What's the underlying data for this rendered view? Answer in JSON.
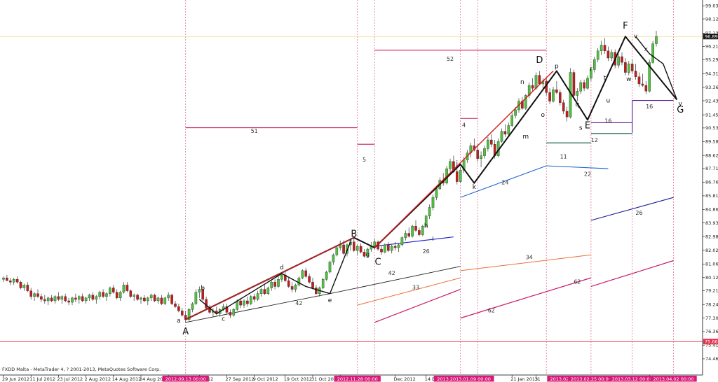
{
  "caption": "FXDD Malta - MetaTrader 4, ? 2001-2013, MetaQuotes Software Corp.",
  "chart_data": {
    "type": "candlestick",
    "ylim": [
      74.7,
      99.2
    ],
    "y_ticks": [
      "99.035",
      "98.125",
      "97.135",
      "96.210",
      "95.290",
      "94.310",
      "93.360",
      "92.430",
      "91.450",
      "90.535",
      "89.585",
      "88.625",
      "87.710",
      "86.760",
      "85.810",
      "84.860",
      "83.930",
      "82.980",
      "82.025",
      "81.065",
      "80.120",
      "79.210",
      "78.245",
      "77.300",
      "76.360",
      "75.410",
      "74.460"
    ],
    "current_price": {
      "label": "96.899",
      "value": 96.9
    },
    "low_line": {
      "label": "75.666",
      "value": 75.66
    },
    "x_labels": [
      {
        "i": 0,
        "text": "29 Jun 2012"
      },
      {
        "i": 8,
        "text": "11 Jul 2012"
      },
      {
        "i": 16,
        "text": "23 Jul 2012"
      },
      {
        "i": 24,
        "text": "2 Aug 2012"
      },
      {
        "i": 32,
        "text": "14 Aug 2012"
      },
      {
        "i": 40,
        "text": "24 Aug 2012"
      },
      {
        "i": 48,
        "text": "5"
      },
      {
        "i": 57,
        "text": "s 2012"
      },
      {
        "i": 65,
        "text": "27 Sep 2012"
      },
      {
        "i": 73,
        "text": "9 Oct 2012"
      },
      {
        "i": 82,
        "text": "19 Oct 2012"
      },
      {
        "i": 90,
        "text": "31 Oct 2012"
      },
      {
        "i": 98,
        "text": "12 No"
      },
      {
        "i": 114,
        "text": "Dec 2012"
      },
      {
        "i": 123,
        "text": "14 Dec 2012"
      },
      {
        "i": 148,
        "text": "21 Jan 2013"
      },
      {
        "i": 155,
        "text": "31"
      },
      {
        "i": 188,
        "text": "Mar 201"
      }
    ],
    "time_tags": [
      {
        "i": 53,
        "text": "2012.09.13 00:00"
      },
      {
        "i": 103,
        "text": "2012.11.28 00:00"
      },
      {
        "i": 134,
        "text": "2013.2013.01.09 00:00"
      },
      {
        "i": 165,
        "text": "2013.02.11 00:00"
      },
      {
        "i": 171,
        "text": "2013.02.25 00:00"
      },
      {
        "i": 183,
        "text": "2013.03.12 00:00"
      },
      {
        "i": 195,
        "text": "2013.04.02 00:00"
      }
    ],
    "vlines_i": [
      53,
      103,
      108,
      133,
      138,
      158,
      171,
      183,
      195
    ],
    "ohlc": [
      [
        80.0,
        80.2,
        79.8,
        80.1
      ],
      [
        80.1,
        80.3,
        79.9,
        79.9
      ],
      [
        79.9,
        80.1,
        79.6,
        79.8
      ],
      [
        79.8,
        80.1,
        79.6,
        80.0
      ],
      [
        80.0,
        80.2,
        79.7,
        79.8
      ],
      [
        79.8,
        79.9,
        79.3,
        79.4
      ],
      [
        79.4,
        79.7,
        79.2,
        79.6
      ],
      [
        79.6,
        79.8,
        79.1,
        79.2
      ],
      [
        79.2,
        79.4,
        78.6,
        78.8
      ],
      [
        78.8,
        79.1,
        78.5,
        79.0
      ],
      [
        79.0,
        79.3,
        78.7,
        78.8
      ],
      [
        78.8,
        79.0,
        78.4,
        78.6
      ],
      [
        78.6,
        78.9,
        78.3,
        78.5
      ],
      [
        78.5,
        78.8,
        78.2,
        78.7
      ],
      [
        78.7,
        78.9,
        78.4,
        78.5
      ],
      [
        78.5,
        78.9,
        78.3,
        78.8
      ],
      [
        78.8,
        79.1,
        78.5,
        78.6
      ],
      [
        78.6,
        78.9,
        78.3,
        78.8
      ],
      [
        78.8,
        79.0,
        78.4,
        78.5
      ],
      [
        78.5,
        78.7,
        78.2,
        78.4
      ],
      [
        78.4,
        78.8,
        78.2,
        78.7
      ],
      [
        78.7,
        79.0,
        78.4,
        78.6
      ],
      [
        78.6,
        78.9,
        78.3,
        78.8
      ],
      [
        78.8,
        79.0,
        78.4,
        78.5
      ],
      [
        78.5,
        78.8,
        78.3,
        78.7
      ],
      [
        78.7,
        79.0,
        78.5,
        78.9
      ],
      [
        78.9,
        79.1,
        78.5,
        78.6
      ],
      [
        78.6,
        78.9,
        78.3,
        78.8
      ],
      [
        78.8,
        79.2,
        78.6,
        79.1
      ],
      [
        79.1,
        79.3,
        78.7,
        78.8
      ],
      [
        78.8,
        79.1,
        78.5,
        79.0
      ],
      [
        79.0,
        79.5,
        78.8,
        79.4
      ],
      [
        79.4,
        79.6,
        79.0,
        79.1
      ],
      [
        79.1,
        79.3,
        78.6,
        78.7
      ],
      [
        78.7,
        79.2,
        78.5,
        79.1
      ],
      [
        79.1,
        79.8,
        79.0,
        79.6
      ],
      [
        79.6,
        79.8,
        79.1,
        79.2
      ],
      [
        79.2,
        79.3,
        78.7,
        78.8
      ],
      [
        78.8,
        79.0,
        78.5,
        78.9
      ],
      [
        78.9,
        79.0,
        78.5,
        78.6
      ],
      [
        78.6,
        78.8,
        78.3,
        78.7
      ],
      [
        78.7,
        78.9,
        78.4,
        78.5
      ],
      [
        78.5,
        78.8,
        78.2,
        78.7
      ],
      [
        78.7,
        79.0,
        78.5,
        78.9
      ],
      [
        78.9,
        79.0,
        78.4,
        78.5
      ],
      [
        78.5,
        78.8,
        78.3,
        78.7
      ],
      [
        78.7,
        78.9,
        78.2,
        78.3
      ],
      [
        78.3,
        78.8,
        78.2,
        78.7
      ],
      [
        78.7,
        79.1,
        78.5,
        78.9
      ],
      [
        78.9,
        79.0,
        78.2,
        78.3
      ],
      [
        78.3,
        78.5,
        78.0,
        78.1
      ],
      [
        78.1,
        78.3,
        77.7,
        77.8
      ],
      [
        77.8,
        78.0,
        77.4,
        77.5
      ],
      [
        77.5,
        77.8,
        77.0,
        77.2
      ],
      [
        77.2,
        78.0,
        77.1,
        77.9
      ],
      [
        77.9,
        78.4,
        77.7,
        78.3
      ],
      [
        78.3,
        79.3,
        78.2,
        79.1
      ],
      [
        79.1,
        79.5,
        78.7,
        79.3
      ],
      [
        79.3,
        79.5,
        78.5,
        78.6
      ],
      [
        78.6,
        78.8,
        77.9,
        78.0
      ],
      [
        78.0,
        78.2,
        77.6,
        77.7
      ],
      [
        77.7,
        78.0,
        77.4,
        77.8
      ],
      [
        77.8,
        78.1,
        77.5,
        77.6
      ],
      [
        77.6,
        78.0,
        77.4,
        77.9
      ],
      [
        77.9,
        78.3,
        77.8,
        78.1
      ],
      [
        78.1,
        78.3,
        77.6,
        77.7
      ],
      [
        77.7,
        77.9,
        77.3,
        77.5
      ],
      [
        77.5,
        78.0,
        77.4,
        77.9
      ],
      [
        77.9,
        78.6,
        77.8,
        78.5
      ],
      [
        78.5,
        78.7,
        78.0,
        78.2
      ],
      [
        78.2,
        78.6,
        78.0,
        78.5
      ],
      [
        78.5,
        78.8,
        78.1,
        78.3
      ],
      [
        78.3,
        78.9,
        78.2,
        78.8
      ],
      [
        78.8,
        79.0,
        78.4,
        78.6
      ],
      [
        78.6,
        79.2,
        78.5,
        79.0
      ],
      [
        79.0,
        79.4,
        78.8,
        79.3
      ],
      [
        79.3,
        79.6,
        78.9,
        79.0
      ],
      [
        79.0,
        79.5,
        78.9,
        79.4
      ],
      [
        79.4,
        79.9,
        79.2,
        79.8
      ],
      [
        79.8,
        80.0,
        79.3,
        79.5
      ],
      [
        79.5,
        80.2,
        79.4,
        80.0
      ],
      [
        80.0,
        80.5,
        79.8,
        80.3
      ],
      [
        80.3,
        80.6,
        79.8,
        79.9
      ],
      [
        79.9,
        80.1,
        79.4,
        79.5
      ],
      [
        79.5,
        79.8,
        79.1,
        79.3
      ],
      [
        79.3,
        79.7,
        79.1,
        79.6
      ],
      [
        79.6,
        80.2,
        79.5,
        80.1
      ],
      [
        80.1,
        80.7,
        80.0,
        80.6
      ],
      [
        80.6,
        80.8,
        80.1,
        80.2
      ],
      [
        80.2,
        80.4,
        79.7,
        79.8
      ],
      [
        79.8,
        80.1,
        79.3,
        79.4
      ],
      [
        79.4,
        79.6,
        78.9,
        79.0
      ],
      [
        79.0,
        79.5,
        78.8,
        79.4
      ],
      [
        79.4,
        80.1,
        79.3,
        80.0
      ],
      [
        80.0,
        80.6,
        79.9,
        80.5
      ],
      [
        80.5,
        81.3,
        80.4,
        81.2
      ],
      [
        81.2,
        81.8,
        81.0,
        81.7
      ],
      [
        81.7,
        82.3,
        81.6,
        82.2
      ],
      [
        82.2,
        82.7,
        82.0,
        82.4
      ],
      [
        82.4,
        82.7,
        81.7,
        81.8
      ],
      [
        81.8,
        82.5,
        81.6,
        82.4
      ],
      [
        82.4,
        82.8,
        82.0,
        82.6
      ],
      [
        82.6,
        82.9,
        81.9,
        82.0
      ],
      [
        82.0,
        82.4,
        81.7,
        82.3
      ],
      [
        82.3,
        82.5,
        81.8,
        81.9
      ],
      [
        81.9,
        82.1,
        81.5,
        81.6
      ],
      [
        81.6,
        82.2,
        81.5,
        82.1
      ],
      [
        82.1,
        82.6,
        81.9,
        82.3
      ],
      [
        82.3,
        82.8,
        82.1,
        82.6
      ],
      [
        82.6,
        82.7,
        82.0,
        82.1
      ],
      [
        82.1,
        82.3,
        81.7,
        81.9
      ],
      [
        81.9,
        82.5,
        81.8,
        82.4
      ],
      [
        82.4,
        82.6,
        81.9,
        82.0
      ],
      [
        82.0,
        82.4,
        81.8,
        82.3
      ],
      [
        82.3,
        82.6,
        82.0,
        82.2
      ],
      [
        82.2,
        82.5,
        81.9,
        82.4
      ],
      [
        82.4,
        83.0,
        82.3,
        82.9
      ],
      [
        82.9,
        83.4,
        82.7,
        83.2
      ],
      [
        83.2,
        83.6,
        82.9,
        83.0
      ],
      [
        83.0,
        83.8,
        82.9,
        83.7
      ],
      [
        83.7,
        84.1,
        83.3,
        83.4
      ],
      [
        83.4,
        83.6,
        83.0,
        83.1
      ],
      [
        83.1,
        83.8,
        83.0,
        83.7
      ],
      [
        83.7,
        84.5,
        83.6,
        84.4
      ],
      [
        84.4,
        85.2,
        84.2,
        85.0
      ],
      [
        85.0,
        85.9,
        84.8,
        85.7
      ],
      [
        85.7,
        86.5,
        85.5,
        86.3
      ],
      [
        86.3,
        87.1,
        86.2,
        86.9
      ],
      [
        86.9,
        87.4,
        86.5,
        86.7
      ],
      [
        86.7,
        87.9,
        86.6,
        87.7
      ],
      [
        87.7,
        88.4,
        87.5,
        88.2
      ],
      [
        88.2,
        88.6,
        87.4,
        87.5
      ],
      [
        87.5,
        87.7,
        86.6,
        86.8
      ],
      [
        86.8,
        87.8,
        86.7,
        87.6
      ],
      [
        87.6,
        88.5,
        87.4,
        88.3
      ],
      [
        88.3,
        89.0,
        88.1,
        88.8
      ],
      [
        88.8,
        89.5,
        88.5,
        89.3
      ],
      [
        89.3,
        89.8,
        88.9,
        89.0
      ],
      [
        89.0,
        89.4,
        88.2,
        88.4
      ],
      [
        88.4,
        88.9,
        87.8,
        88.6
      ],
      [
        88.6,
        89.3,
        88.4,
        89.1
      ],
      [
        89.1,
        89.9,
        88.9,
        89.7
      ],
      [
        89.7,
        90.1,
        89.2,
        89.4
      ],
      [
        89.4,
        89.7,
        88.4,
        88.6
      ],
      [
        88.6,
        89.8,
        88.5,
        89.6
      ],
      [
        89.6,
        90.5,
        89.5,
        90.3
      ],
      [
        90.3,
        90.8,
        89.9,
        90.1
      ],
      [
        90.1,
        90.9,
        90.0,
        90.7
      ],
      [
        90.7,
        91.6,
        90.6,
        91.4
      ],
      [
        91.4,
        92.0,
        91.2,
        91.8
      ],
      [
        91.8,
        92.6,
        91.6,
        92.4
      ],
      [
        92.4,
        92.7,
        91.8,
        91.9
      ],
      [
        91.9,
        92.9,
        91.8,
        92.8
      ],
      [
        92.8,
        93.7,
        92.6,
        93.5
      ],
      [
        93.5,
        94.0,
        93.1,
        93.3
      ],
      [
        93.3,
        94.4,
        93.2,
        94.2
      ],
      [
        94.2,
        94.5,
        93.5,
        93.6
      ],
      [
        93.6,
        94.0,
        93.2,
        93.8
      ],
      [
        93.8,
        94.0,
        92.8,
        93.0
      ],
      [
        93.0,
        93.3,
        92.2,
        92.4
      ],
      [
        92.4,
        93.4,
        92.3,
        93.2
      ],
      [
        93.2,
        93.8,
        92.9,
        93.0
      ],
      [
        93.0,
        93.2,
        92.1,
        92.3
      ],
      [
        92.3,
        92.5,
        91.5,
        91.7
      ],
      [
        91.7,
        92.0,
        91.0,
        91.3
      ],
      [
        91.3,
        94.7,
        91.2,
        94.4
      ],
      [
        94.4,
        94.6,
        92.6,
        92.8
      ],
      [
        92.8,
        93.3,
        92.4,
        93.1
      ],
      [
        93.1,
        93.9,
        92.9,
        93.7
      ],
      [
        93.7,
        93.9,
        93.1,
        93.3
      ],
      [
        93.3,
        94.2,
        93.2,
        94.0
      ],
      [
        94.0,
        94.8,
        93.8,
        94.6
      ],
      [
        94.6,
        95.5,
        94.4,
        95.3
      ],
      [
        95.3,
        96.1,
        95.1,
        95.9
      ],
      [
        95.9,
        96.6,
        95.6,
        96.3
      ],
      [
        96.3,
        96.8,
        95.7,
        95.9
      ],
      [
        95.9,
        96.2,
        95.2,
        95.4
      ],
      [
        95.4,
        96.0,
        95.2,
        95.8
      ],
      [
        95.8,
        96.0,
        94.7,
        94.9
      ],
      [
        94.9,
        95.7,
        94.7,
        95.5
      ],
      [
        95.5,
        95.8,
        94.9,
        95.1
      ],
      [
        95.1,
        95.4,
        94.2,
        94.4
      ],
      [
        94.4,
        95.2,
        94.2,
        95.0
      ],
      [
        95.0,
        95.3,
        94.3,
        94.5
      ],
      [
        94.5,
        95.0,
        93.9,
        94.1
      ],
      [
        94.1,
        94.4,
        93.4,
        93.6
      ],
      [
        93.6,
        94.3,
        93.4,
        93.5
      ],
      [
        93.5,
        93.8,
        92.9,
        93.1
      ],
      [
        93.1,
        95.3,
        93.0,
        95.1
      ],
      [
        95.1,
        96.6,
        95.0,
        96.4
      ],
      [
        96.4,
        97.3,
        96.2,
        96.9
      ]
    ],
    "wave_labels": [
      {
        "t": "A",
        "i": 53,
        "y": 76.15
      },
      {
        "t": "B",
        "i": 102,
        "y": 82.95
      },
      {
        "t": "C",
        "i": 109,
        "y": 81.0
      },
      {
        "t": "D",
        "i": 156,
        "y": 95.05
      },
      {
        "t": "E",
        "i": 170,
        "y": 90.5
      },
      {
        "t": "F",
        "i": 181,
        "y": 97.45
      },
      {
        "t": "G",
        "i": 197,
        "y": 91.6
      }
    ],
    "sub_labels": [
      {
        "t": "a",
        "i": 51,
        "y": 77.0
      },
      {
        "t": "b",
        "i": 58,
        "y": 79.25
      },
      {
        "t": "c",
        "i": 64,
        "y": 77.1
      },
      {
        "t": "d",
        "i": 81,
        "y": 80.7
      },
      {
        "t": "e",
        "i": 95,
        "y": 78.4
      },
      {
        "t": "f",
        "i": 101,
        "y": 82.5
      },
      {
        "t": "g",
        "i": 106,
        "y": 81.6
      },
      {
        "t": "h",
        "i": 123,
        "y": 83.6
      },
      {
        "t": "i",
        "i": 125,
        "y": 82.7
      },
      {
        "t": "j",
        "i": 132,
        "y": 87.95
      },
      {
        "t": "k",
        "i": 137,
        "y": 86.3
      },
      {
        "t": "m",
        "i": 152,
        "y": 89.8
      },
      {
        "t": "n",
        "i": 151,
        "y": 93.6
      },
      {
        "t": "o",
        "i": 157,
        "y": 91.3
      },
      {
        "t": "p",
        "i": 161,
        "y": 94.7
      },
      {
        "t": "q",
        "i": 167,
        "y": 92.05
      },
      {
        "t": "r",
        "i": 171,
        "y": 94.5
      },
      {
        "t": "s",
        "i": 168,
        "y": 90.4
      },
      {
        "t": "t",
        "i": 175,
        "y": 93.9
      },
      {
        "t": "u",
        "i": 176,
        "y": 92.3
      },
      {
        "t": "v",
        "i": 184,
        "y": 96.8
      },
      {
        "t": "w",
        "i": 182,
        "y": 93.8
      },
      {
        "t": "x",
        "i": 187,
        "y": 95.9
      },
      {
        "t": "y",
        "i": 197,
        "y": 92.1
      }
    ],
    "num_labels": [
      {
        "t": "51",
        "i": 73,
        "y": 90.2
      },
      {
        "t": "52",
        "i": 130,
        "y": 95.2
      },
      {
        "t": "4",
        "i": 134,
        "y": 90.6
      },
      {
        "t": "5",
        "i": 105,
        "y": 88.2
      },
      {
        "t": "26",
        "i": 123,
        "y": 81.8
      },
      {
        "t": "24",
        "i": 146,
        "y": 86.6
      },
      {
        "t": "42",
        "i": 113,
        "y": 80.3
      },
      {
        "t": "42",
        "i": 86,
        "y": 78.2
      },
      {
        "t": "33",
        "i": 120,
        "y": 79.3
      },
      {
        "t": "34",
        "i": 153,
        "y": 81.4
      },
      {
        "t": "62",
        "i": 142,
        "y": 77.7
      },
      {
        "t": "62",
        "i": 167,
        "y": 79.7
      },
      {
        "t": "11",
        "i": 163,
        "y": 88.4
      },
      {
        "t": "12",
        "i": 172,
        "y": 89.55
      },
      {
        "t": "22",
        "i": 170,
        "y": 87.2
      },
      {
        "t": "26",
        "i": 185,
        "y": 84.5
      },
      {
        "t": "16",
        "i": 176,
        "y": 90.9
      },
      {
        "t": "16",
        "i": 188,
        "y": 91.9
      }
    ]
  }
}
